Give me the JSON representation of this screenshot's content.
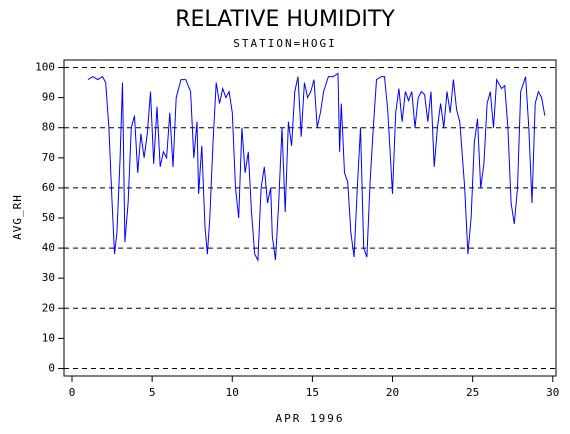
{
  "chart_data": {
    "type": "line",
    "title": "RELATIVE HUMIDITY",
    "subtitle": "STATION=HOGI",
    "x_label": "APR 1996",
    "y_label": "AVG_RH",
    "xlim": [
      -0.5,
      30.2
    ],
    "ylim": [
      -2.5,
      102.5
    ],
    "xticks": [
      0,
      5,
      10,
      15,
      20,
      25,
      30
    ],
    "yticks": [
      0,
      10,
      20,
      30,
      40,
      50,
      60,
      70,
      80,
      90,
      100
    ],
    "grid": true,
    "grid_step": 20,
    "series": [
      {
        "name": "AVG_RH",
        "color": "#0000ff",
        "x": [
          1.0,
          1.3,
          1.6,
          1.9,
          2.1,
          2.3,
          2.5,
          2.65,
          2.8,
          3.0,
          3.15,
          3.3,
          3.5,
          3.7,
          3.9,
          4.1,
          4.3,
          4.5,
          4.7,
          4.9,
          5.1,
          5.3,
          5.5,
          5.7,
          5.9,
          6.1,
          6.3,
          6.5,
          6.8,
          7.1,
          7.4,
          7.6,
          7.8,
          7.9,
          8.1,
          8.3,
          8.45,
          8.6,
          8.8,
          9.0,
          9.2,
          9.4,
          9.6,
          9.8,
          10.0,
          10.2,
          10.4,
          10.6,
          10.8,
          11.0,
          11.2,
          11.4,
          11.6,
          11.8,
          12.0,
          12.2,
          12.4,
          12.5,
          12.7,
          12.9,
          13.1,
          13.3,
          13.5,
          13.7,
          13.9,
          14.1,
          14.3,
          14.5,
          14.7,
          14.9,
          15.1,
          15.3,
          15.5,
          15.7,
          16.0,
          16.3,
          16.6,
          16.7,
          16.8,
          17.0,
          17.2,
          17.4,
          17.6,
          17.8,
          18.0,
          18.2,
          18.4,
          18.6,
          18.8,
          19.0,
          19.3,
          19.5,
          19.7,
          20.0,
          20.2,
          20.4,
          20.6,
          20.8,
          21.0,
          21.2,
          21.4,
          21.6,
          21.8,
          22.0,
          22.2,
          22.4,
          22.6,
          22.8,
          23.0,
          23.2,
          23.4,
          23.6,
          23.8,
          24.0,
          24.2,
          24.5,
          24.7,
          24.9,
          25.1,
          25.3,
          25.5,
          25.7,
          25.9,
          26.1,
          26.3,
          26.5,
          26.8,
          27.0,
          27.2,
          27.4,
          27.6,
          27.8,
          28.0,
          28.3,
          28.5,
          28.7,
          28.9,
          29.1,
          29.3,
          29.5
        ],
        "values": [
          96,
          97,
          96,
          97,
          95,
          80,
          55,
          38,
          45,
          70,
          95,
          42,
          55,
          80,
          84,
          65,
          78,
          70,
          78,
          92,
          68,
          87,
          67,
          72,
          70,
          85,
          67,
          90,
          96,
          96,
          92,
          70,
          82,
          58,
          74,
          47,
          38,
          50,
          75,
          95,
          88,
          93,
          90,
          92,
          85,
          60,
          50,
          80,
          65,
          72,
          52,
          38,
          36,
          60,
          67,
          55,
          60,
          44,
          36,
          55,
          80,
          52,
          82,
          74,
          92,
          97,
          77,
          95,
          90,
          92,
          96,
          80,
          85,
          92,
          97,
          97,
          98,
          72,
          88,
          65,
          62,
          45,
          37,
          60,
          80,
          40,
          37,
          62,
          80,
          96,
          97,
          97,
          86,
          58,
          85,
          93,
          82,
          92,
          89,
          92,
          80,
          90,
          92,
          91,
          82,
          92,
          67,
          80,
          88,
          80,
          92,
          85,
          96,
          86,
          82,
          60,
          38,
          50,
          75,
          83,
          60,
          68,
          88,
          92,
          80,
          96,
          93,
          94,
          80,
          55,
          48,
          60,
          92,
          97,
          80,
          55,
          88,
          92,
          90,
          84
        ]
      }
    ]
  }
}
